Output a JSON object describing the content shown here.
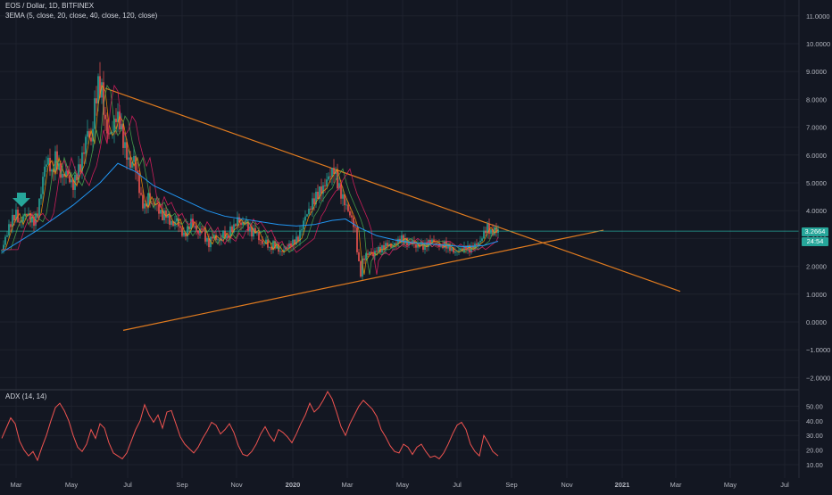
{
  "header": {
    "symbol_line": "EOS / Dollar, 1D, BITFINEX",
    "indicator_line": "3EMA (5, close, 20, close, 40, close, 120, close)"
  },
  "price_tags": {
    "last_price": "3.2664",
    "countdown": "24:54"
  },
  "adx_panel": {
    "label": "ADX (14, 14)"
  },
  "colors": {
    "background": "#131722",
    "candle_up": "#26a69a",
    "candle_down": "#ef5350",
    "trendline": "#e07b1f",
    "ema_120": "#2196f3",
    "adx_line": "#ef5350",
    "horizontal_line": "#26a69a",
    "arrow": "#26a69a"
  },
  "annotation_icons": [
    "down-arrow-icon"
  ],
  "chart_data": [
    {
      "type": "line",
      "y_axis_ticks": [
        "11.0000",
        "10.0000",
        "9.0000",
        "8.0000",
        "7.0000",
        "6.0000",
        "5.0000",
        "4.0000",
        "3.0000",
        "2.0000",
        "1.0000",
        "0.0000",
        "−1.0000",
        "−2.0000"
      ],
      "x_axis_ticks": [
        "Mar",
        "May",
        "Jul",
        "Sep",
        "Nov",
        "2020",
        "Mar",
        "May",
        "Jul",
        "Sep",
        "Nov",
        "2021",
        "Mar",
        "May",
        "Jul"
      ],
      "ylim": [
        -2.4,
        11.6
      ],
      "price_path": [
        [
          0,
          2.6
        ],
        [
          4,
          3.0
        ],
        [
          8,
          3.4
        ],
        [
          12,
          3.7
        ],
        [
          16,
          3.9
        ],
        [
          20,
          3.5
        ],
        [
          24,
          3.8
        ],
        [
          28,
          3.9
        ],
        [
          32,
          3.7
        ],
        [
          36,
          3.6
        ],
        [
          40,
          3.9
        ],
        [
          44,
          4.7
        ],
        [
          48,
          5.6
        ],
        [
          52,
          5.8
        ],
        [
          56,
          5.3
        ],
        [
          60,
          5.9
        ],
        [
          64,
          5.5
        ],
        [
          68,
          5.2
        ],
        [
          72,
          5.4
        ],
        [
          76,
          5.1
        ],
        [
          80,
          4.9
        ],
        [
          84,
          5.3
        ],
        [
          88,
          5.6
        ],
        [
          92,
          6.2
        ],
        [
          96,
          6.9
        ],
        [
          100,
          6.4
        ],
        [
          104,
          7.8
        ],
        [
          108,
          8.5
        ],
        [
          112,
          8.3
        ],
        [
          116,
          7.1
        ],
        [
          120,
          6.7
        ],
        [
          124,
          6.9
        ],
        [
          128,
          7.4
        ],
        [
          132,
          7.2
        ],
        [
          136,
          6.5
        ],
        [
          140,
          6.0
        ],
        [
          144,
          5.6
        ],
        [
          148,
          5.9
        ],
        [
          152,
          5.2
        ],
        [
          156,
          4.4
        ],
        [
          160,
          4.1
        ],
        [
          164,
          4.5
        ],
        [
          168,
          4.2
        ],
        [
          172,
          4.3
        ],
        [
          176,
          4.0
        ],
        [
          180,
          3.8
        ],
        [
          184,
          3.9
        ],
        [
          188,
          3.6
        ],
        [
          192,
          3.5
        ],
        [
          196,
          3.7
        ],
        [
          200,
          3.3
        ],
        [
          204,
          3.1
        ],
        [
          208,
          3.3
        ],
        [
          212,
          3.6
        ],
        [
          216,
          3.4
        ],
        [
          220,
          3.2
        ],
        [
          224,
          3.4
        ],
        [
          228,
          3.0
        ],
        [
          232,
          2.8
        ],
        [
          236,
          3.1
        ],
        [
          240,
          3.0
        ],
        [
          244,
          2.9
        ],
        [
          248,
          3.2
        ],
        [
          252,
          3.0
        ],
        [
          256,
          3.3
        ],
        [
          260,
          3.4
        ],
        [
          264,
          3.7
        ],
        [
          268,
          3.5
        ],
        [
          272,
          3.6
        ],
        [
          276,
          3.4
        ],
        [
          280,
          3.2
        ],
        [
          284,
          3.3
        ],
        [
          288,
          3.0
        ],
        [
          292,
          2.8
        ],
        [
          296,
          2.9
        ],
        [
          300,
          2.6
        ],
        [
          304,
          2.8
        ],
        [
          308,
          2.7
        ],
        [
          312,
          2.5
        ],
        [
          316,
          2.6
        ],
        [
          320,
          2.7
        ],
        [
          324,
          2.8
        ],
        [
          328,
          2.9
        ],
        [
          332,
          3.0
        ],
        [
          336,
          3.4
        ],
        [
          340,
          3.8
        ],
        [
          344,
          4.0
        ],
        [
          348,
          4.3
        ],
        [
          352,
          4.5
        ],
        [
          356,
          4.7
        ],
        [
          360,
          4.8
        ],
        [
          364,
          5.1
        ],
        [
          368,
          5.3
        ],
        [
          372,
          5.5
        ],
        [
          376,
          5.0
        ],
        [
          380,
          4.6
        ],
        [
          384,
          4.3
        ],
        [
          388,
          4.0
        ],
        [
          392,
          3.7
        ],
        [
          396,
          3.3
        ],
        [
          398,
          2.6
        ],
        [
          400,
          2.1
        ],
        [
          402,
          1.7
        ],
        [
          404,
          2.2
        ],
        [
          408,
          2.4
        ],
        [
          412,
          2.5
        ],
        [
          416,
          2.4
        ],
        [
          420,
          2.6
        ],
        [
          424,
          2.6
        ],
        [
          428,
          2.7
        ],
        [
          432,
          2.8
        ],
        [
          436,
          2.7
        ],
        [
          440,
          2.8
        ],
        [
          444,
          2.9
        ],
        [
          448,
          3.0
        ],
        [
          452,
          2.9
        ],
        [
          456,
          2.8
        ],
        [
          460,
          2.9
        ],
        [
          464,
          2.7
        ],
        [
          468,
          2.8
        ],
        [
          472,
          2.7
        ],
        [
          476,
          2.8
        ],
        [
          480,
          2.9
        ],
        [
          484,
          2.9
        ],
        [
          488,
          2.8
        ],
        [
          492,
          2.7
        ],
        [
          496,
          2.8
        ],
        [
          500,
          2.7
        ],
        [
          504,
          2.6
        ],
        [
          508,
          2.5
        ],
        [
          512,
          2.6
        ],
        [
          516,
          2.6
        ],
        [
          520,
          2.7
        ],
        [
          524,
          2.6
        ],
        [
          528,
          2.7
        ],
        [
          532,
          2.8
        ],
        [
          536,
          2.9
        ],
        [
          540,
          3.2
        ],
        [
          544,
          3.4
        ],
        [
          548,
          3.2
        ],
        [
          552,
          3.3
        ],
        [
          556,
          3.27
        ]
      ],
      "ema_120_path": [
        [
          0,
          2.5
        ],
        [
          40,
          3.3
        ],
        [
          80,
          4.2
        ],
        [
          110,
          5.0
        ],
        [
          130,
          5.7
        ],
        [
          150,
          5.4
        ],
        [
          170,
          4.9
        ],
        [
          190,
          4.6
        ],
        [
          210,
          4.3
        ],
        [
          230,
          4.0
        ],
        [
          250,
          3.8
        ],
        [
          270,
          3.7
        ],
        [
          290,
          3.6
        ],
        [
          310,
          3.5
        ],
        [
          330,
          3.45
        ],
        [
          350,
          3.5
        ],
        [
          370,
          3.65
        ],
        [
          385,
          3.7
        ],
        [
          400,
          3.4
        ],
        [
          420,
          3.1
        ],
        [
          440,
          2.95
        ],
        [
          460,
          2.85
        ],
        [
          480,
          2.8
        ],
        [
          500,
          2.75
        ],
        [
          520,
          2.7
        ],
        [
          540,
          2.75
        ],
        [
          556,
          2.9
        ]
      ],
      "trendlines": [
        {
          "from": [
            116,
            8.4
          ],
          "to": [
            760,
            1.1
          ]
        },
        {
          "from": [
            136,
            -0.3
          ],
          "to": [
            674,
            3.3
          ]
        }
      ],
      "horizontal_level": 3.2664
    },
    {
      "type": "line",
      "series_label": "ADX (14, 14)",
      "y_axis_ticks": [
        "50.00",
        "40.00",
        "30.00",
        "20.00",
        "10.00"
      ],
      "ylim": [
        8,
        58
      ],
      "adx_path": [
        [
          0,
          28
        ],
        [
          5,
          35
        ],
        [
          10,
          42
        ],
        [
          15,
          38
        ],
        [
          20,
          26
        ],
        [
          25,
          20
        ],
        [
          30,
          16
        ],
        [
          35,
          19
        ],
        [
          40,
          13
        ],
        [
          45,
          22
        ],
        [
          50,
          30
        ],
        [
          55,
          40
        ],
        [
          60,
          49
        ],
        [
          65,
          52
        ],
        [
          70,
          47
        ],
        [
          75,
          40
        ],
        [
          80,
          30
        ],
        [
          85,
          22
        ],
        [
          90,
          19
        ],
        [
          95,
          24
        ],
        [
          100,
          34
        ],
        [
          105,
          28
        ],
        [
          110,
          38
        ],
        [
          115,
          35
        ],
        [
          120,
          25
        ],
        [
          125,
          18
        ],
        [
          130,
          16
        ],
        [
          135,
          14
        ],
        [
          140,
          18
        ],
        [
          145,
          26
        ],
        [
          150,
          34
        ],
        [
          155,
          40
        ],
        [
          160,
          51
        ],
        [
          165,
          44
        ],
        [
          170,
          39
        ],
        [
          175,
          44
        ],
        [
          180,
          35
        ],
        [
          185,
          46
        ],
        [
          190,
          47
        ],
        [
          195,
          38
        ],
        [
          200,
          29
        ],
        [
          205,
          24
        ],
        [
          210,
          21
        ],
        [
          215,
          18
        ],
        [
          220,
          22
        ],
        [
          225,
          28
        ],
        [
          230,
          33
        ],
        [
          235,
          39
        ],
        [
          240,
          37
        ],
        [
          245,
          31
        ],
        [
          250,
          34
        ],
        [
          255,
          38
        ],
        [
          260,
          32
        ],
        [
          265,
          23
        ],
        [
          270,
          17
        ],
        [
          275,
          16
        ],
        [
          280,
          19
        ],
        [
          285,
          24
        ],
        [
          290,
          31
        ],
        [
          295,
          36
        ],
        [
          300,
          30
        ],
        [
          305,
          26
        ],
        [
          310,
          34
        ],
        [
          315,
          32
        ],
        [
          320,
          29
        ],
        [
          325,
          25
        ],
        [
          330,
          31
        ],
        [
          335,
          38
        ],
        [
          340,
          44
        ],
        [
          345,
          52
        ],
        [
          350,
          46
        ],
        [
          355,
          49
        ],
        [
          360,
          54
        ],
        [
          365,
          60
        ],
        [
          370,
          55
        ],
        [
          375,
          46
        ],
        [
          380,
          36
        ],
        [
          385,
          30
        ],
        [
          390,
          38
        ],
        [
          395,
          44
        ],
        [
          400,
          50
        ],
        [
          405,
          54
        ],
        [
          410,
          51
        ],
        [
          415,
          48
        ],
        [
          420,
          43
        ],
        [
          425,
          34
        ],
        [
          430,
          29
        ],
        [
          435,
          23
        ],
        [
          440,
          19
        ],
        [
          445,
          18
        ],
        [
          450,
          24
        ],
        [
          455,
          22
        ],
        [
          460,
          17
        ],
        [
          465,
          22
        ],
        [
          470,
          24
        ],
        [
          475,
          19
        ],
        [
          480,
          15
        ],
        [
          485,
          16
        ],
        [
          490,
          14
        ],
        [
          495,
          18
        ],
        [
          500,
          24
        ],
        [
          505,
          31
        ],
        [
          510,
          37
        ],
        [
          515,
          39
        ],
        [
          520,
          34
        ],
        [
          525,
          24
        ],
        [
          530,
          19
        ],
        [
          535,
          16
        ],
        [
          540,
          30
        ],
        [
          545,
          25
        ],
        [
          550,
          19
        ],
        [
          556,
          16
        ]
      ]
    }
  ]
}
